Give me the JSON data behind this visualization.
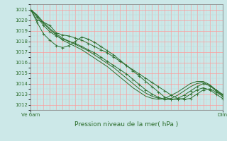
{
  "title": "Pression niveau de la mer( hPa )",
  "background_color": "#cce8e8",
  "plot_bg_color": "#cce8e8",
  "grid_color_major": "#ff9999",
  "grid_color_minor": "#b8d8d8",
  "line_color": "#2d6e2d",
  "ylim": [
    1011.5,
    1021.5
  ],
  "yticks": [
    1012,
    1013,
    1014,
    1015,
    1016,
    1017,
    1018,
    1019,
    1020,
    1021
  ],
  "xlabel_left": "Ve 6am",
  "xlabel_right": "Dim",
  "line1": [
    1021.0,
    1020.0,
    1019.8,
    1019.5,
    1018.8,
    1018.6,
    1018.5,
    1018.3,
    1018.1,
    1017.8,
    1017.5,
    1017.2,
    1016.9,
    1016.5,
    1016.1,
    1015.7,
    1015.3,
    1014.9,
    1014.5,
    1014.1,
    1013.7,
    1013.3,
    1012.9,
    1012.6,
    1012.5,
    1012.6,
    1013.0,
    1013.4,
    1013.5,
    1013.2,
    1012.8
  ],
  "line2": [
    1021.0,
    1019.8,
    1018.7,
    1018.1,
    1017.6,
    1017.4,
    1017.6,
    1018.0,
    1018.4,
    1018.2,
    1017.9,
    1017.5,
    1017.1,
    1016.7,
    1016.2,
    1015.7,
    1015.2,
    1014.7,
    1014.2,
    1013.7,
    1013.2,
    1012.7,
    1012.5,
    1012.5,
    1012.6,
    1013.0,
    1013.4,
    1013.6,
    1013.4,
    1013.0,
    1012.6
  ],
  "line3": [
    1021.0,
    1020.3,
    1019.5,
    1018.9,
    1018.5,
    1018.2,
    1018.0,
    1017.8,
    1017.5,
    1017.2,
    1016.9,
    1016.5,
    1016.1,
    1015.7,
    1015.3,
    1014.9,
    1014.4,
    1013.9,
    1013.4,
    1013.0,
    1012.7,
    1012.5,
    1012.5,
    1012.6,
    1012.9,
    1013.3,
    1013.7,
    1014.0,
    1013.8,
    1013.4,
    1013.0
  ],
  "line4_smooth": [
    1021.0,
    1020.5,
    1019.8,
    1019.2,
    1018.7,
    1018.3,
    1018.0,
    1017.7,
    1017.4,
    1017.1,
    1016.7,
    1016.3,
    1015.9,
    1015.5,
    1015.0,
    1014.5,
    1014.0,
    1013.5,
    1013.1,
    1012.8,
    1012.6,
    1012.5,
    1012.6,
    1012.9,
    1013.3,
    1013.7,
    1014.0,
    1014.1,
    1013.8,
    1013.3,
    1012.9
  ],
  "line5_smooth2": [
    1021.0,
    1020.4,
    1019.7,
    1019.1,
    1018.6,
    1018.1,
    1017.8,
    1017.5,
    1017.2,
    1016.8,
    1016.4,
    1016.0,
    1015.6,
    1015.1,
    1014.6,
    1014.1,
    1013.6,
    1013.2,
    1012.8,
    1012.6,
    1012.5,
    1012.6,
    1012.9,
    1013.2,
    1013.6,
    1014.0,
    1014.2,
    1014.2,
    1013.9,
    1013.4,
    1012.9
  ]
}
